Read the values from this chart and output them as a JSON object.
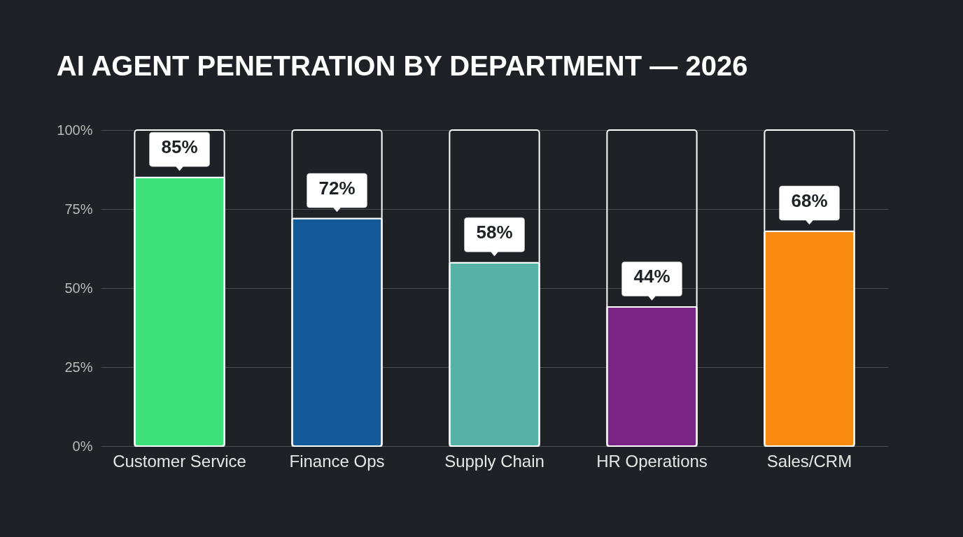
{
  "chart_data": {
    "type": "bar",
    "title": "AI AGENT PENETRATION BY DEPARTMENT — 2026",
    "categories": [
      "Customer Service",
      "Finance Ops",
      "Supply Chain",
      "HR Operations",
      "Sales/CRM"
    ],
    "values": [
      85,
      72,
      58,
      44,
      68
    ],
    "colors": [
      "#3ee07a",
      "#125a98",
      "#58b1a6",
      "#7a2484",
      "#f98a12"
    ],
    "value_labels": [
      "85%",
      "72%",
      "58%",
      "44%",
      "68%"
    ],
    "ylim": [
      0,
      100
    ],
    "yticks": [
      {
        "value": 0,
        "label": "0%"
      },
      {
        "value": 25,
        "label": "25%"
      },
      {
        "value": 50,
        "label": "50%"
      },
      {
        "value": 75,
        "label": "75%"
      },
      {
        "value": 100,
        "label": "100%"
      }
    ],
    "grid": "y"
  }
}
